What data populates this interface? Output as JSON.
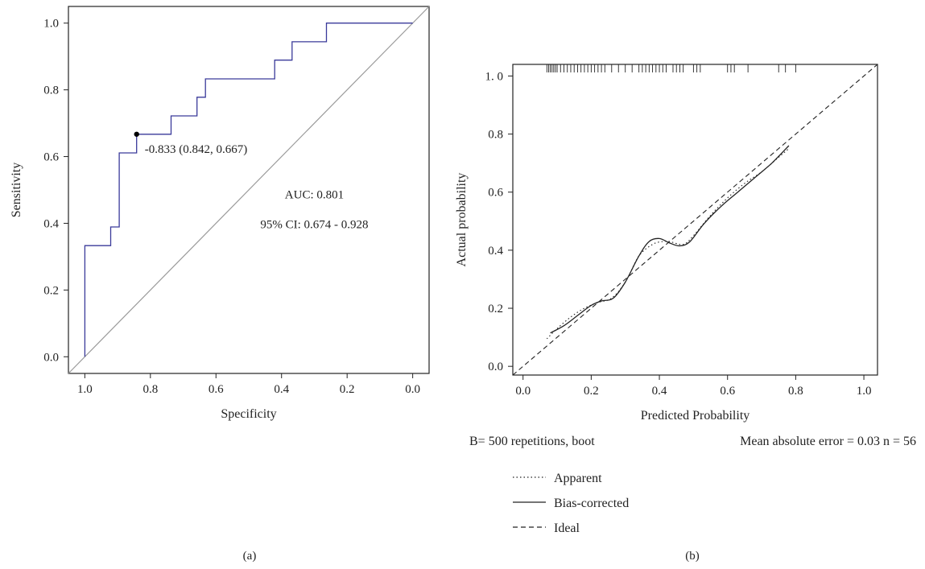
{
  "colors": {
    "roc_curve": "#3a3a9a",
    "diagonal": "#9a9a9a",
    "ink": "#222222"
  },
  "chart_data": [
    {
      "panel_label": "(a)",
      "type": "line",
      "xlabel": "Specificity",
      "ylabel": "Sensitivity",
      "x_reversed": true,
      "xlim": [
        1.05,
        -0.05
      ],
      "ylim": [
        -0.05,
        1.05
      ],
      "xticks": [
        1.0,
        0.8,
        0.6,
        0.4,
        0.2,
        0.0
      ],
      "xtick_labels": [
        "1.0",
        "0.8",
        "0.6",
        "0.4",
        "0.2",
        "0.0"
      ],
      "yticks": [
        0.0,
        0.2,
        0.4,
        0.6,
        0.8,
        1.0
      ],
      "ytick_labels": [
        "0.0",
        "0.2",
        "0.4",
        "0.6",
        "0.8",
        "1.0"
      ],
      "series": [
        {
          "style": "step",
          "points": [
            [
              1.0,
              0.0
            ],
            [
              1.0,
              0.333
            ],
            [
              0.921,
              0.333
            ],
            [
              0.921,
              0.389
            ],
            [
              0.895,
              0.389
            ],
            [
              0.895,
              0.611
            ],
            [
              0.842,
              0.611
            ],
            [
              0.842,
              0.667
            ],
            [
              0.737,
              0.667
            ],
            [
              0.737,
              0.722
            ],
            [
              0.658,
              0.722
            ],
            [
              0.658,
              0.778
            ],
            [
              0.632,
              0.778
            ],
            [
              0.632,
              0.833
            ],
            [
              0.421,
              0.833
            ],
            [
              0.421,
              0.889
            ],
            [
              0.368,
              0.889
            ],
            [
              0.368,
              0.944
            ],
            [
              0.263,
              0.944
            ],
            [
              0.263,
              1.0
            ],
            [
              0.0,
              1.0
            ]
          ]
        },
        {
          "style": "reference",
          "points": [
            [
              1.05,
              -0.05
            ],
            [
              -0.05,
              1.05
            ]
          ]
        }
      ],
      "highlight_point": {
        "x": 0.842,
        "y": 0.667,
        "label": "-0.833 (0.842, 0.667)"
      },
      "annotations": {
        "auc": "AUC: 0.801",
        "ci": "95% CI: 0.674 - 0.928"
      }
    },
    {
      "panel_label": "(b)",
      "type": "line",
      "xlabel": "Predicted Probability",
      "ylabel": "Actual probability",
      "xlim": [
        -0.03,
        1.04
      ],
      "ylim": [
        -0.03,
        1.04
      ],
      "xticks": [
        0.0,
        0.2,
        0.4,
        0.6,
        0.8,
        1.0
      ],
      "xtick_labels": [
        "0.0",
        "0.2",
        "0.4",
        "0.6",
        "0.8",
        "1.0"
      ],
      "yticks": [
        0.0,
        0.2,
        0.4,
        0.6,
        0.8,
        1.0
      ],
      "ytick_labels": [
        "0.0",
        "0.2",
        "0.4",
        "0.6",
        "0.8",
        "1. 0"
      ],
      "rug_x": [
        0.07,
        0.075,
        0.08,
        0.085,
        0.09,
        0.095,
        0.1,
        0.11,
        0.12,
        0.13,
        0.14,
        0.15,
        0.16,
        0.17,
        0.18,
        0.19,
        0.2,
        0.21,
        0.22,
        0.23,
        0.24,
        0.26,
        0.28,
        0.3,
        0.32,
        0.34,
        0.35,
        0.36,
        0.37,
        0.38,
        0.39,
        0.4,
        0.41,
        0.42,
        0.44,
        0.45,
        0.46,
        0.47,
        0.5,
        0.51,
        0.52,
        0.6,
        0.61,
        0.62,
        0.66,
        0.75,
        0.77,
        0.8
      ],
      "series": [
        {
          "name": "Apparent",
          "dash": "dotted",
          "points": [
            [
              0.07,
              0.095
            ],
            [
              0.1,
              0.13
            ],
            [
              0.14,
              0.17
            ],
            [
              0.18,
              0.2
            ],
            [
              0.22,
              0.22
            ],
            [
              0.26,
              0.235
            ],
            [
              0.3,
              0.29
            ],
            [
              0.34,
              0.38
            ],
            [
              0.38,
              0.42
            ],
            [
              0.41,
              0.43
            ],
            [
              0.43,
              0.43
            ],
            [
              0.47,
              0.42
            ],
            [
              0.5,
              0.45
            ],
            [
              0.55,
              0.52
            ],
            [
              0.6,
              0.58
            ],
            [
              0.65,
              0.63
            ],
            [
              0.7,
              0.67
            ],
            [
              0.75,
              0.72
            ],
            [
              0.78,
              0.75
            ]
          ]
        },
        {
          "name": "Bias-corrected",
          "dash": "solid",
          "points": [
            [
              0.08,
              0.115
            ],
            [
              0.12,
              0.14
            ],
            [
              0.16,
              0.175
            ],
            [
              0.2,
              0.21
            ],
            [
              0.23,
              0.225
            ],
            [
              0.265,
              0.235
            ],
            [
              0.3,
              0.29
            ],
            [
              0.34,
              0.38
            ],
            [
              0.37,
              0.43
            ],
            [
              0.4,
              0.44
            ],
            [
              0.43,
              0.425
            ],
            [
              0.46,
              0.415
            ],
            [
              0.49,
              0.43
            ],
            [
              0.53,
              0.49
            ],
            [
              0.58,
              0.55
            ],
            [
              0.63,
              0.6
            ],
            [
              0.68,
              0.65
            ],
            [
              0.73,
              0.7
            ],
            [
              0.78,
              0.76
            ]
          ]
        },
        {
          "name": "Ideal",
          "dash": "dashed",
          "points": [
            [
              -0.03,
              -0.03
            ],
            [
              1.04,
              1.04
            ]
          ]
        }
      ],
      "footer_left": "B= 500 repetitions, boot",
      "footer_right": "Mean absolute error = 0.03 n = 56",
      "legend": [
        "Apparent",
        "Bias-corrected",
        "Ideal"
      ]
    }
  ]
}
